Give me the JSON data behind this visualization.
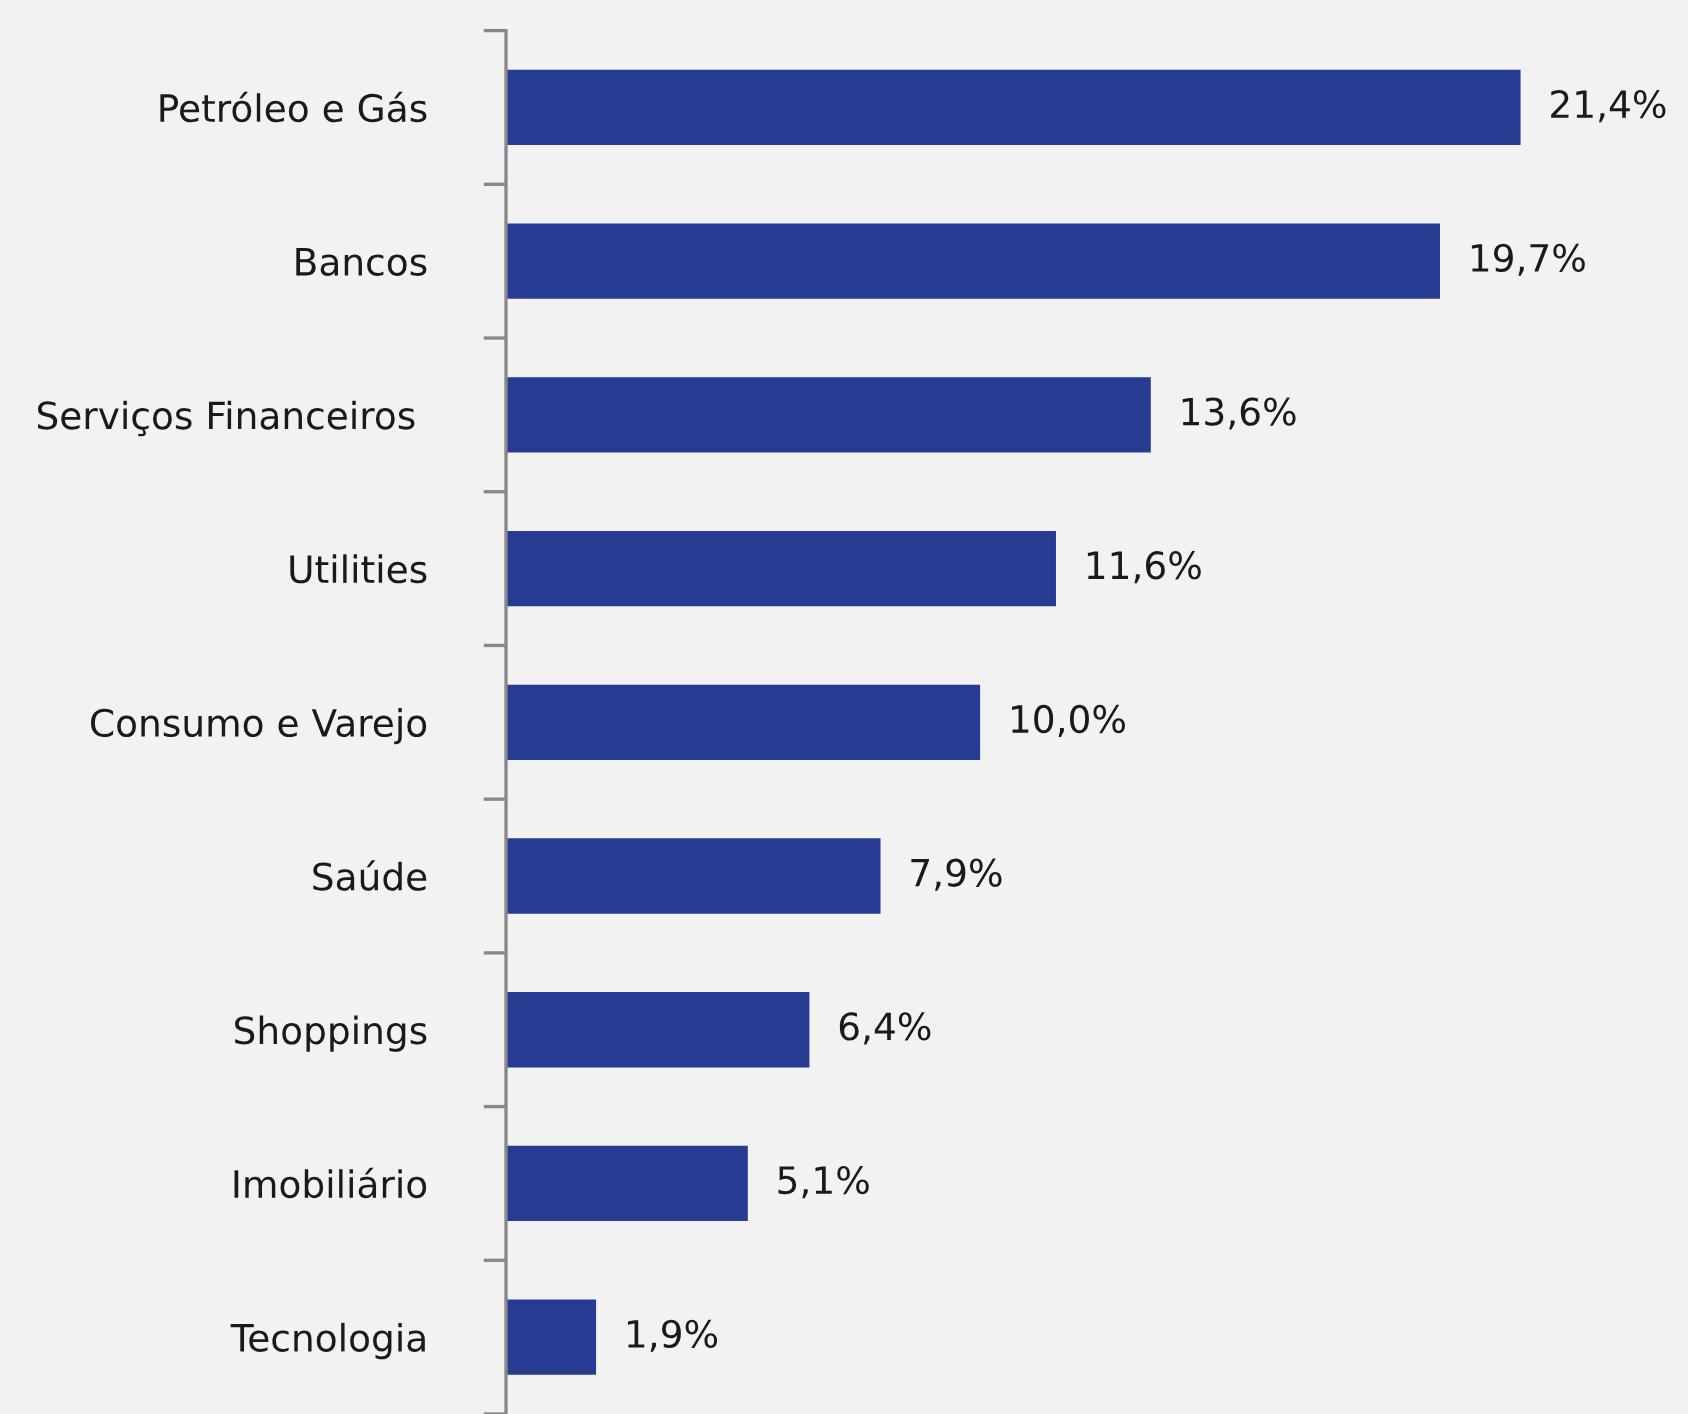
{
  "chart_data": {
    "type": "bar",
    "orientation": "horizontal",
    "categories": [
      "Petróleo e Gás",
      "Bancos",
      "Serviços Financeiros ",
      "Utilities",
      "Consumo e Varejo",
      "Saúde",
      "Shoppings",
      "Imobiliário",
      "Tecnologia"
    ],
    "values": [
      21.4,
      19.7,
      13.6,
      11.6,
      10.0,
      7.9,
      6.4,
      5.1,
      1.9
    ],
    "value_labels": [
      "21,4%",
      "19,7%",
      "13,6%",
      "11,6%",
      "10,0%",
      "7,9%",
      "6,4%",
      "5,1%",
      "1,9%"
    ],
    "color": "#283b93",
    "grid": false,
    "legend": false
  }
}
